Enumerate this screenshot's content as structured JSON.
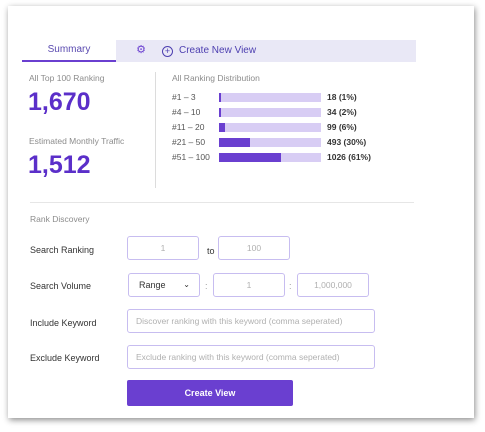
{
  "tabs": {
    "summary": "Summary",
    "create_new_view": "Create New View"
  },
  "summary": {
    "all_top_100_label": "All Top 100 Ranking",
    "all_top_100_value": "1,670",
    "traffic_label": "Estimated Monthly Traffic",
    "traffic_value": "1,512"
  },
  "distribution": {
    "title": "All Ranking Distribution",
    "rows": [
      {
        "range": "#1 – 3",
        "count_label": "18 (1%)",
        "percent": 1
      },
      {
        "range": "#4 – 10",
        "count_label": "34 (2%)",
        "percent": 2
      },
      {
        "range": "#11 – 20",
        "count_label": "99 (6%)",
        "percent": 6
      },
      {
        "range": "#21 – 50",
        "count_label": "493 (30%)",
        "percent": 30
      },
      {
        "range": "#51 – 100",
        "count_label": "1026 (61%)",
        "percent": 61
      }
    ]
  },
  "rank_discovery": {
    "title": "Rank Discovery",
    "search_ranking_label": "Search Ranking",
    "ranking_from_placeholder": "1",
    "to_label": "to",
    "ranking_to_placeholder": "100",
    "search_volume_label": "Search Volume",
    "volume_mode": "Range",
    "volume_min_placeholder": "1",
    "volume_max_placeholder": "1,000,000",
    "separator": ":",
    "include_label": "Include Keyword",
    "include_placeholder": "Discover ranking with this keyword (comma seperated)",
    "exclude_label": "Exclude Keyword",
    "exclude_placeholder": "Exclude ranking with this keyword (comma seperated)",
    "create_button": "Create View"
  },
  "colors": {
    "accent": "#6a3fd0",
    "bar_track": "#d8cdf4",
    "tab_bar": "#e9e8f6"
  }
}
